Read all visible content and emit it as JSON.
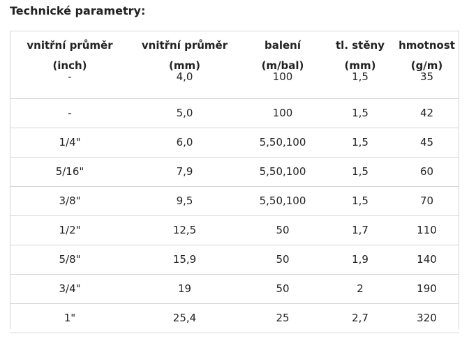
{
  "title": "Technické parametry:",
  "headers": [
    [
      "vnitřní průměr",
      "(inch)"
    ],
    [
      "vnitřní průměr",
      "(mm)"
    ],
    [
      "balení",
      "(m/bal)"
    ],
    [
      "tl. stěny",
      "(mm)"
    ],
    [
      "hmotnost",
      "(g/m)"
    ]
  ],
  "rows": [
    [
      "-",
      "4,0",
      "100",
      "1,5",
      "35"
    ],
    [
      "-",
      "5,0",
      "100",
      "1,5",
      "42"
    ],
    [
      "1/4\"",
      "6,0",
      "5,50,100",
      "1,5",
      "45"
    ],
    [
      "5/16\"",
      "7,9",
      "5,50,100",
      "1,5",
      "60"
    ],
    [
      "3/8\"",
      "9,5",
      "5,50,100",
      "1,5",
      "70"
    ],
    [
      "1/2\"",
      "12,5",
      "50",
      "1,7",
      "110"
    ],
    [
      "5/8\"",
      "15,9",
      "50",
      "1,9",
      "140"
    ],
    [
      "3/4\"",
      "19",
      "50",
      "2",
      "190"
    ],
    [
      "1\"",
      "25,4",
      "25",
      "2,7",
      "320"
    ]
  ]
}
